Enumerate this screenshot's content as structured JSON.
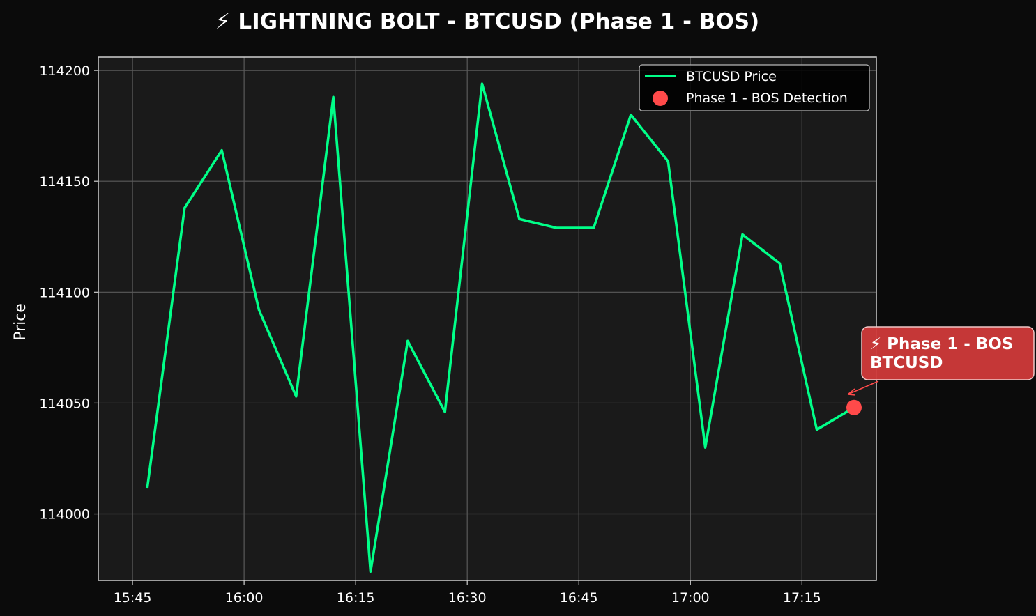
{
  "chart_data": {
    "type": "line",
    "title": "⚡ LIGHTNING BOLT - BTCUSD (Phase 1 - BOS)",
    "xlabel": "",
    "ylabel": "Price",
    "x_tick_labels": [
      "15:45",
      "16:00",
      "16:15",
      "16:30",
      "16:45",
      "17:00",
      "17:15"
    ],
    "x_tick_minutes": [
      945,
      960,
      975,
      990,
      1005,
      1020,
      1035
    ],
    "y_ticks": [
      114000,
      114050,
      114100,
      114150,
      114200
    ],
    "xlim_minutes": [
      940.4,
      992.7,
      1045.0
    ],
    "xlim": [
      "15:40",
      "17:25"
    ],
    "ylim": [
      113970,
      114206
    ],
    "grid": true,
    "legend_position": "top-right",
    "colors": {
      "background": "#0b0b0b",
      "plot_background": "#1a1a1a",
      "line": "#00ff88",
      "marker": "#ff4a4a",
      "annotation_box": "#d03a3a",
      "grid": "#5a5a5a",
      "axes": "#d0d0d0"
    },
    "series": [
      {
        "name": "BTCUSD Price",
        "x": [
          "15:47",
          "15:52",
          "15:57",
          "16:02",
          "16:07",
          "16:12",
          "16:17",
          "16:22",
          "16:27",
          "16:32",
          "16:37",
          "16:42",
          "16:47",
          "16:52",
          "16:57",
          "17:02",
          "17:07",
          "17:12",
          "17:17",
          "17:22"
        ],
        "x_minutes": [
          947,
          952,
          957,
          962,
          967,
          972,
          977,
          982,
          987,
          992,
          997,
          1002,
          1007,
          1012,
          1017,
          1022,
          1027,
          1032,
          1037,
          1042
        ],
        "values": [
          114012,
          114138,
          114164,
          114092,
          114053,
          114188,
          113974,
          114078,
          114046,
          114194,
          114133,
          114129,
          114129,
          114180,
          114159,
          114030,
          114126,
          114113,
          114038,
          114048
        ]
      }
    ],
    "markers": [
      {
        "name": "Phase 1 - BOS Detection",
        "x": "17:22",
        "x_minutes": 1042,
        "value": 114048
      }
    ],
    "annotation": {
      "line1": "⚡ Phase 1 - BOS",
      "line2": "BTCUSD"
    }
  }
}
